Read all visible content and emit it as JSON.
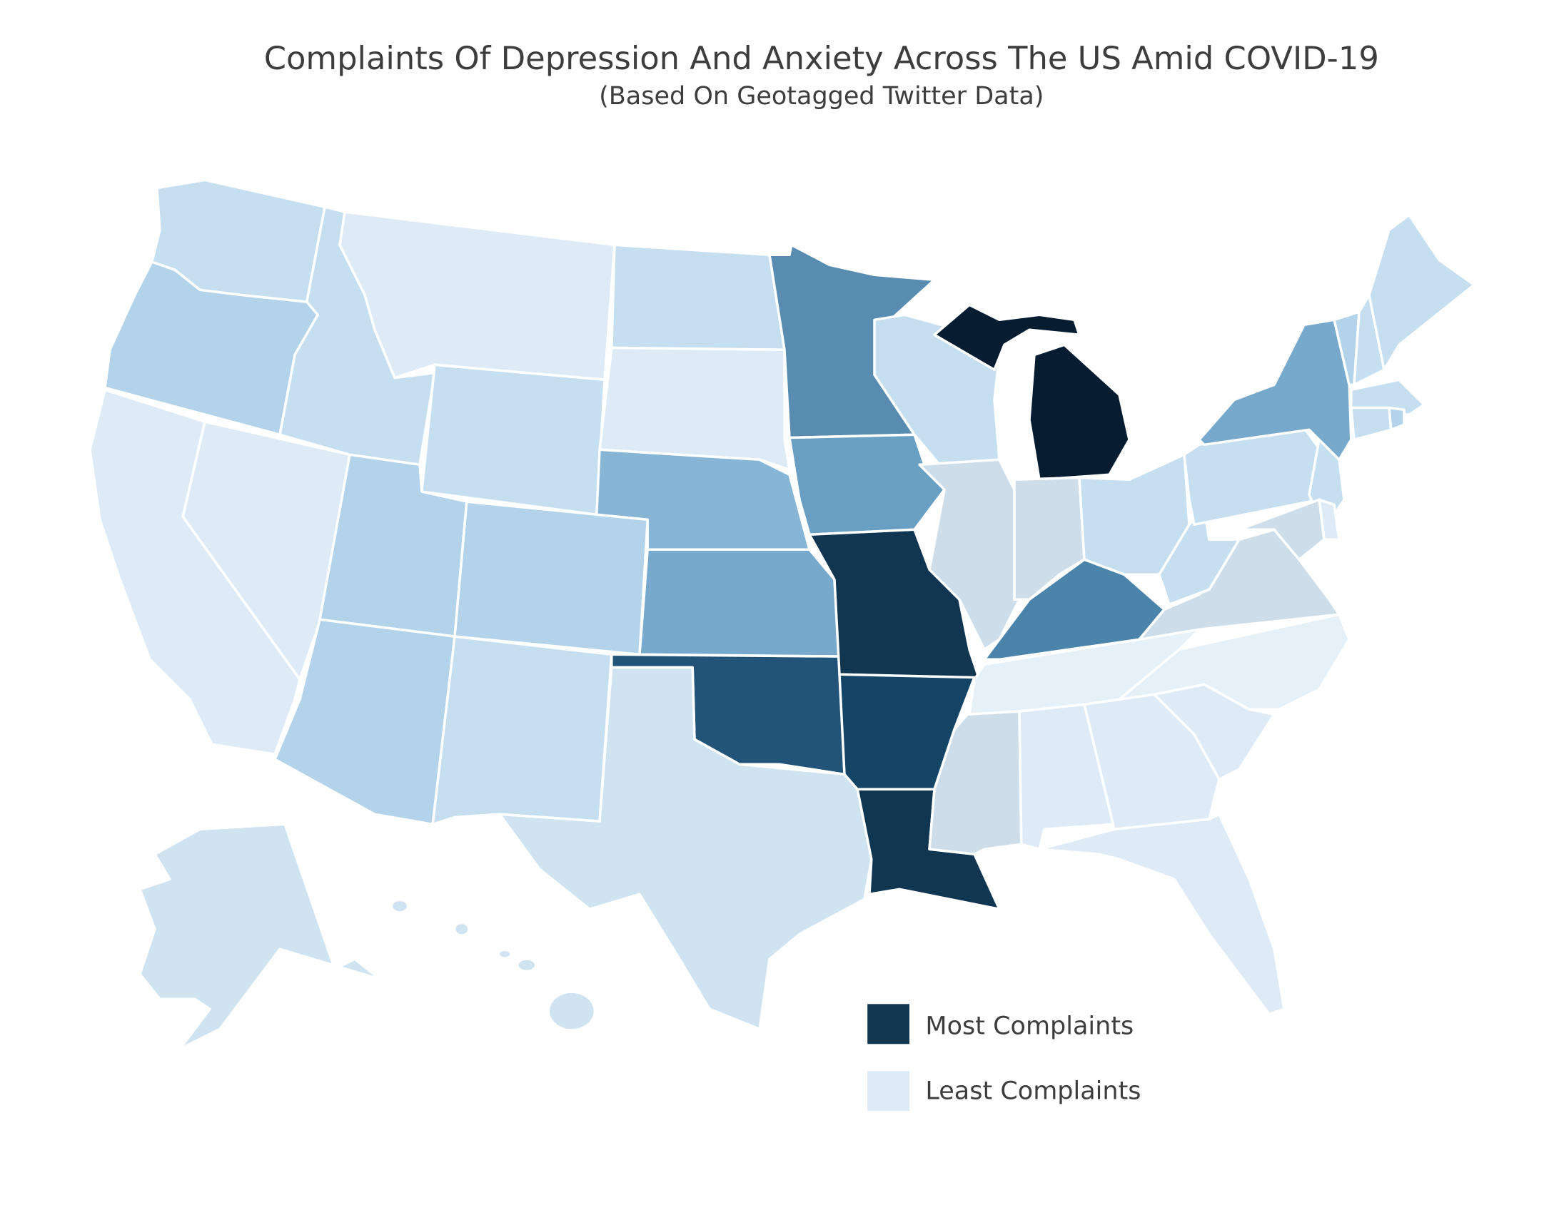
{
  "chart_data": {
    "type": "choropleth",
    "title": "Complaints Of Depression And Anxiety Across The US Amid COVID-19",
    "subtitle": "(Based On Geotagged Twitter Data)",
    "legend": {
      "placement": "bottom-right",
      "entries": [
        {
          "label": "Most Complaints",
          "color": "#113651"
        },
        {
          "label": "Least Complaints",
          "color": "#deebf7"
        }
      ]
    },
    "states": {
      "WA": "#c6dff0",
      "OR": "#b2d3e9",
      "CA": "#deebf7",
      "NV": "#deebf7",
      "ID": "#c6dff0",
      "MT": "#deebf7",
      "WY": "#c6dff0",
      "UT": "#b2d3e9",
      "CO": "#b2d3e9",
      "AZ": "#b2d3e9",
      "NM": "#c6dff0",
      "ND": "#c6dff0",
      "SD": "#deebf7",
      "NE": "#87b5d6",
      "KS": "#76a9cb",
      "OK": "#215478",
      "TX": "#cfe3f1",
      "MN": "#588cb0",
      "IA": "#6a9fc4",
      "MO": "#113651",
      "AR": "#154566",
      "LA": "#113651",
      "WI": "#c6dff0",
      "IL": "#cddeea",
      "MI": "#061d31",
      "IN": "#cddeea",
      "OH": "#c6dff0",
      "KY": "#4a84aa",
      "TN": "#e6f0f8",
      "MS": "#cddeea",
      "AL": "#deebf7",
      "GA": "#deebf7",
      "FL": "#deebf7",
      "SC": "#deebf7",
      "NC": "#e6f0f8",
      "VA": "#cddeea",
      "WV": "#c6dff0",
      "PA": "#c6dff0",
      "NY": "#76a9cb",
      "VT": "#b2d3e9",
      "NH": "#c6dff0",
      "ME": "#c6dff0",
      "MA": "#c6dff0",
      "CT": "#c6dff0",
      "RI": "#b2d3e9",
      "NJ": "#c6dff0",
      "DE": "#deebf7",
      "MD": "#cddeea",
      "AK": "#cfe3f1",
      "HI": "#cfe3f1"
    }
  }
}
